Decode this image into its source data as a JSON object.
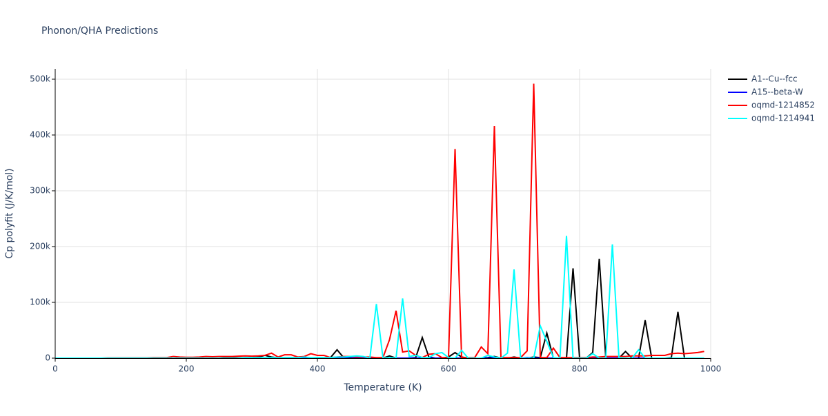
{
  "chart_data": {
    "type": "line",
    "title": "Phonon/QHA Predictions",
    "x_label": "Temperature (K)",
    "y_label": "Cp polyfit (J/K/mol)",
    "x": [
      0,
      10,
      20,
      30,
      40,
      50,
      60,
      70,
      80,
      90,
      100,
      110,
      120,
      130,
      140,
      150,
      160,
      170,
      180,
      190,
      200,
      210,
      220,
      230,
      240,
      250,
      260,
      270,
      280,
      290,
      300,
      310,
      320,
      330,
      340,
      350,
      360,
      370,
      380,
      390,
      400,
      410,
      420,
      430,
      440,
      450,
      460,
      470,
      480,
      490,
      500,
      510,
      520,
      530,
      540,
      550,
      560,
      570,
      580,
      590,
      600,
      610,
      620,
      630,
      640,
      650,
      660,
      670,
      680,
      690,
      700,
      710,
      720,
      730,
      740,
      750,
      760,
      770,
      780,
      790,
      800,
      810,
      820,
      830,
      840,
      850,
      860,
      870,
      880,
      890,
      900,
      910,
      920,
      930,
      940,
      950,
      960,
      970,
      980,
      990
    ],
    "series": [
      {
        "name": "A1--Cu--fcc",
        "color": "#000000",
        "values": [
          0,
          0,
          0,
          0,
          0,
          0,
          0,
          0,
          0,
          0,
          0,
          0,
          0,
          0,
          0,
          0,
          0,
          0,
          0,
          0,
          0,
          0,
          0,
          0,
          0,
          0,
          1000,
          1000,
          500,
          1000,
          1000,
          2000,
          5000,
          2000,
          500,
          1000,
          1000,
          1000,
          500,
          500,
          1000,
          1000,
          1000,
          15000,
          1000,
          1000,
          2000,
          1000,
          500,
          0,
          0,
          4000,
          0,
          0,
          0,
          1000,
          37000,
          2000,
          0,
          0,
          2000,
          10000,
          2000,
          0,
          0,
          0,
          1000,
          3000,
          0,
          0,
          2000,
          0,
          0,
          2000,
          1000,
          45000,
          0,
          0,
          0,
          161000,
          0,
          0,
          10000,
          178000,
          0,
          0,
          0,
          12000,
          0,
          0,
          68000,
          0,
          0,
          0,
          1000,
          83000,
          0,
          0,
          0,
          0
        ]
      },
      {
        "name": "A15--beta-W",
        "color": "#0000ff",
        "values": [
          0,
          0,
          0,
          0,
          0,
          0,
          0,
          0,
          0,
          0,
          0,
          0,
          0,
          0,
          0,
          0,
          0,
          0,
          0,
          0,
          0,
          0,
          0,
          0,
          0,
          0,
          0,
          0,
          0,
          0,
          0,
          0,
          500,
          0,
          0,
          0,
          0,
          0,
          0,
          0,
          0,
          0,
          0,
          0,
          0,
          2000,
          0,
          0,
          0,
          0,
          0,
          0,
          0,
          0,
          0,
          0,
          0,
          0,
          0,
          0,
          0,
          0,
          0,
          0,
          0,
          0,
          0,
          0,
          0,
          0,
          0,
          0,
          1000,
          0,
          0,
          0,
          0,
          0,
          0,
          0,
          0,
          0,
          0,
          0,
          0,
          0,
          0,
          0,
          0,
          0,
          0,
          0,
          0,
          0,
          0,
          0,
          0,
          0,
          0,
          0
        ]
      },
      {
        "name": "oqmd-1214852",
        "color": "#ff0000",
        "values": [
          0,
          0,
          0,
          0,
          0,
          0,
          0,
          0,
          500,
          500,
          500,
          500,
          500,
          500,
          500,
          1000,
          1000,
          1000,
          3000,
          2000,
          1500,
          1500,
          2000,
          3000,
          2500,
          3000,
          3000,
          3000,
          3500,
          4000,
          3500,
          4000,
          5000,
          9000,
          2000,
          6000,
          6000,
          2000,
          3000,
          8000,
          5000,
          5000,
          1000,
          2000,
          3000,
          3000,
          2000,
          2000,
          2000,
          1000,
          1000,
          33000,
          85000,
          11000,
          13000,
          5000,
          1000,
          7000,
          8000,
          1000,
          1000,
          375000,
          1000,
          1000,
          1000,
          20000,
          8000,
          416000,
          1000,
          1000,
          1000,
          1000,
          13000,
          492000,
          1000,
          1000,
          18000,
          1000,
          1000,
          1000,
          1000,
          1000,
          2000,
          2000,
          3000,
          3000,
          3000,
          3000,
          4000,
          4000,
          4000,
          5000,
          5000,
          5000,
          8000,
          9000,
          8000,
          9000,
          10000,
          12000
        ]
      },
      {
        "name": "oqmd-1214941",
        "color": "#00ffff",
        "values": [
          0,
          0,
          0,
          0,
          0,
          0,
          0,
          0,
          0,
          0,
          0,
          0,
          0,
          0,
          0,
          0,
          0,
          0,
          0,
          0,
          0,
          0,
          0,
          0,
          0,
          0,
          0,
          0,
          0,
          1000,
          1000,
          1000,
          1000,
          1000,
          1000,
          1000,
          1000,
          1000,
          2000,
          1000,
          1000,
          1000,
          1000,
          2000,
          2000,
          3000,
          4000,
          3000,
          0,
          97000,
          0,
          1000,
          0,
          107000,
          3000,
          5000,
          1000,
          1000,
          8000,
          10000,
          1000,
          0,
          14000,
          0,
          0,
          0,
          5000,
          2000,
          0,
          9000,
          159000,
          0,
          0,
          0,
          58000,
          30000,
          1000,
          0,
          219000,
          0,
          0,
          0,
          8000,
          0,
          0,
          204000,
          1000,
          0,
          0,
          15000,
          0,
          0,
          0,
          0,
          0,
          0,
          0,
          0,
          0,
          0
        ]
      }
    ],
    "xlim": [
      0,
      1000
    ],
    "xticks": [
      0,
      200,
      400,
      600,
      800,
      1000
    ],
    "ylim": [
      0,
      518500
    ],
    "yticks": [
      0,
      {
        "value": 100000,
        "label": "100k"
      },
      {
        "value": 200000,
        "label": "200k"
      },
      {
        "value": 300000,
        "label": "300k"
      },
      {
        "value": 400000,
        "label": "400k"
      },
      {
        "value": 500000,
        "label": "500k"
      }
    ],
    "grid": true
  }
}
